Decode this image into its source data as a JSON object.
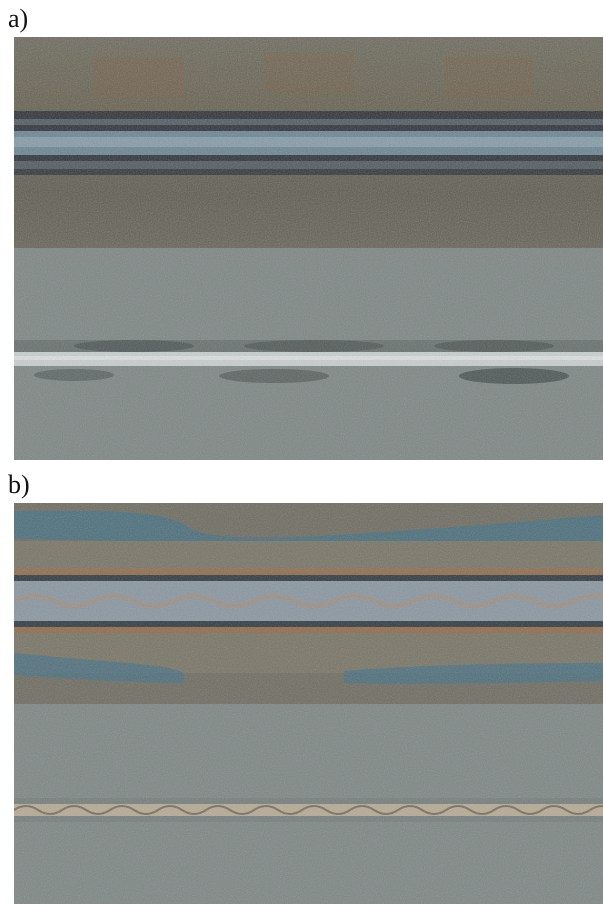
{
  "figure": {
    "parts": [
      {
        "label": "a)",
        "panels": [
          {
            "surface": "oxidized-top-surface",
            "weld": "narrow-bead-with-dark-heat-tint-bands"
          },
          {
            "surface": "grey-bottom-surface",
            "weld": "thin-light-root-bead"
          }
        ]
      },
      {
        "label": "b)",
        "panels": [
          {
            "surface": "oxidized-top-surface",
            "weld": "wide-rippled-bead-with-blue-orange-heat-tint"
          },
          {
            "surface": "grey-bottom-surface",
            "weld": "thin-rippled-root-bead"
          }
        ]
      }
    ],
    "colors": {
      "background": "#ffffff",
      "top_surface": "#6f6c5f",
      "bottom_surface": "#7d8684",
      "bead_light": "#c7cfce",
      "heat_tint_dark": "#2f3a42",
      "heat_tint_blue": "#3f6f86",
      "heat_tint_orange": "#9a6a45"
    }
  }
}
